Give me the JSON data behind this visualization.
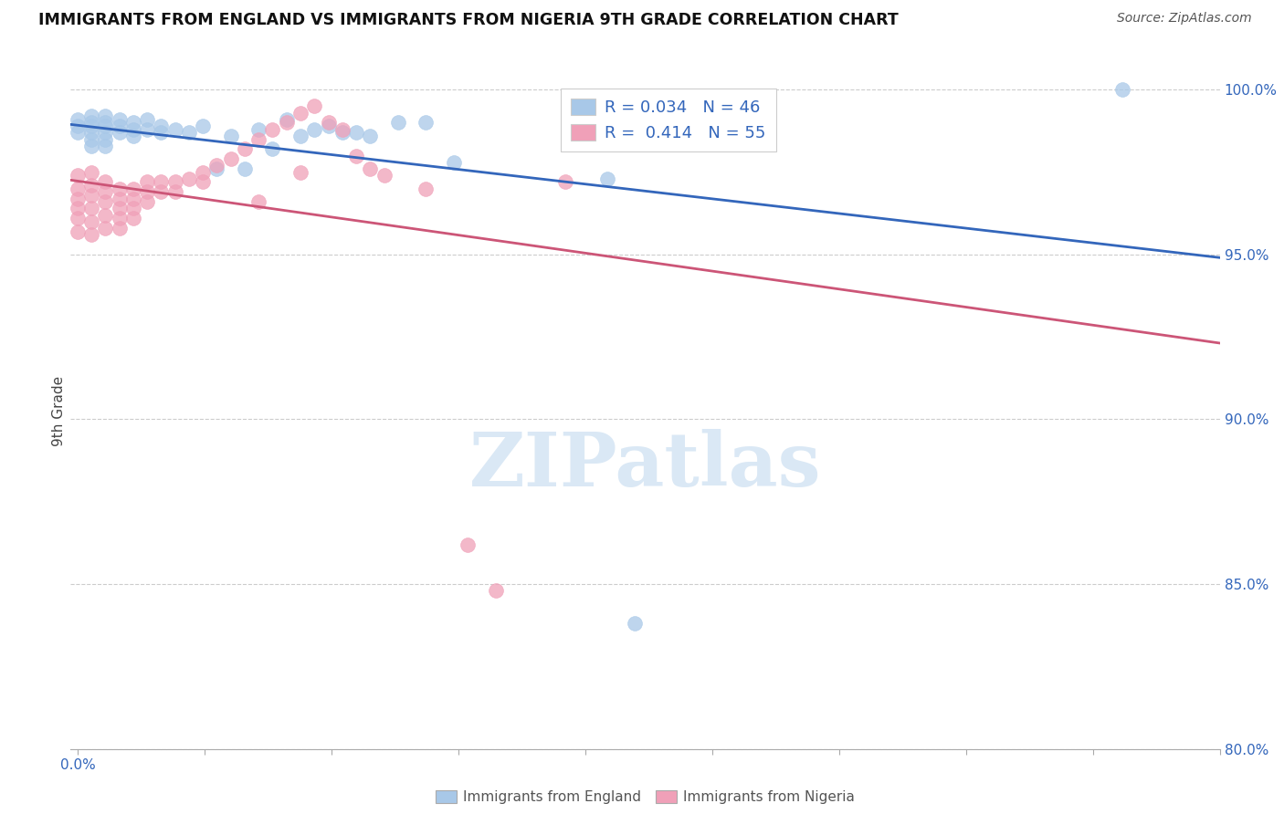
{
  "title": "IMMIGRANTS FROM ENGLAND VS IMMIGRANTS FROM NIGERIA 9TH GRADE CORRELATION CHART",
  "source": "Source: ZipAtlas.com",
  "ylabel_label": "9th Grade",
  "y_min": 0.8,
  "y_max": 1.005,
  "x_min": -0.0005,
  "x_max": 0.082,
  "blue_R": 0.034,
  "blue_N": 46,
  "pink_R": 0.414,
  "pink_N": 55,
  "blue_color": "#a8c8e8",
  "pink_color": "#f0a0b8",
  "blue_line_color": "#3366bb",
  "pink_line_color": "#cc5577",
  "blue_x": [
    0.0,
    0.0,
    0.0,
    0.001,
    0.001,
    0.001,
    0.001,
    0.001,
    0.001,
    0.002,
    0.002,
    0.002,
    0.002,
    0.002,
    0.002,
    0.003,
    0.003,
    0.003,
    0.004,
    0.004,
    0.004,
    0.005,
    0.005,
    0.006,
    0.006,
    0.007,
    0.008,
    0.009,
    0.01,
    0.011,
    0.012,
    0.013,
    0.014,
    0.015,
    0.016,
    0.017,
    0.018,
    0.019,
    0.02,
    0.021,
    0.023,
    0.025,
    0.027,
    0.075,
    0.038,
    0.04
  ],
  "blue_y": [
    0.991,
    0.989,
    0.987,
    0.992,
    0.99,
    0.989,
    0.987,
    0.985,
    0.983,
    0.992,
    0.99,
    0.989,
    0.987,
    0.985,
    0.983,
    0.991,
    0.989,
    0.987,
    0.99,
    0.988,
    0.986,
    0.991,
    0.988,
    0.989,
    0.987,
    0.988,
    0.987,
    0.989,
    0.976,
    0.986,
    0.976,
    0.988,
    0.982,
    0.991,
    0.986,
    0.988,
    0.989,
    0.987,
    0.987,
    0.986,
    0.99,
    0.99,
    0.978,
    1.0,
    0.973,
    0.838
  ],
  "pink_x": [
    0.0,
    0.0,
    0.0,
    0.0,
    0.0,
    0.0,
    0.001,
    0.001,
    0.001,
    0.001,
    0.001,
    0.001,
    0.002,
    0.002,
    0.002,
    0.002,
    0.002,
    0.003,
    0.003,
    0.003,
    0.003,
    0.003,
    0.004,
    0.004,
    0.004,
    0.004,
    0.005,
    0.005,
    0.005,
    0.006,
    0.006,
    0.007,
    0.007,
    0.008,
    0.009,
    0.009,
    0.01,
    0.011,
    0.012,
    0.013,
    0.014,
    0.015,
    0.016,
    0.017,
    0.018,
    0.019,
    0.02,
    0.021,
    0.022,
    0.025,
    0.028,
    0.03,
    0.035,
    0.013,
    0.016
  ],
  "pink_y": [
    0.974,
    0.97,
    0.967,
    0.964,
    0.961,
    0.957,
    0.975,
    0.971,
    0.968,
    0.964,
    0.96,
    0.956,
    0.972,
    0.969,
    0.966,
    0.962,
    0.958,
    0.97,
    0.967,
    0.964,
    0.961,
    0.958,
    0.97,
    0.967,
    0.964,
    0.961,
    0.972,
    0.969,
    0.966,
    0.972,
    0.969,
    0.972,
    0.969,
    0.973,
    0.975,
    0.972,
    0.977,
    0.979,
    0.982,
    0.985,
    0.988,
    0.99,
    0.993,
    0.995,
    0.99,
    0.988,
    0.98,
    0.976,
    0.974,
    0.97,
    0.862,
    0.848,
    0.972,
    0.966,
    0.975
  ],
  "grid_color": "#cccccc",
  "background_color": "#ffffff",
  "watermark_text": "ZIPatlas",
  "watermark_color": "#dae8f5"
}
